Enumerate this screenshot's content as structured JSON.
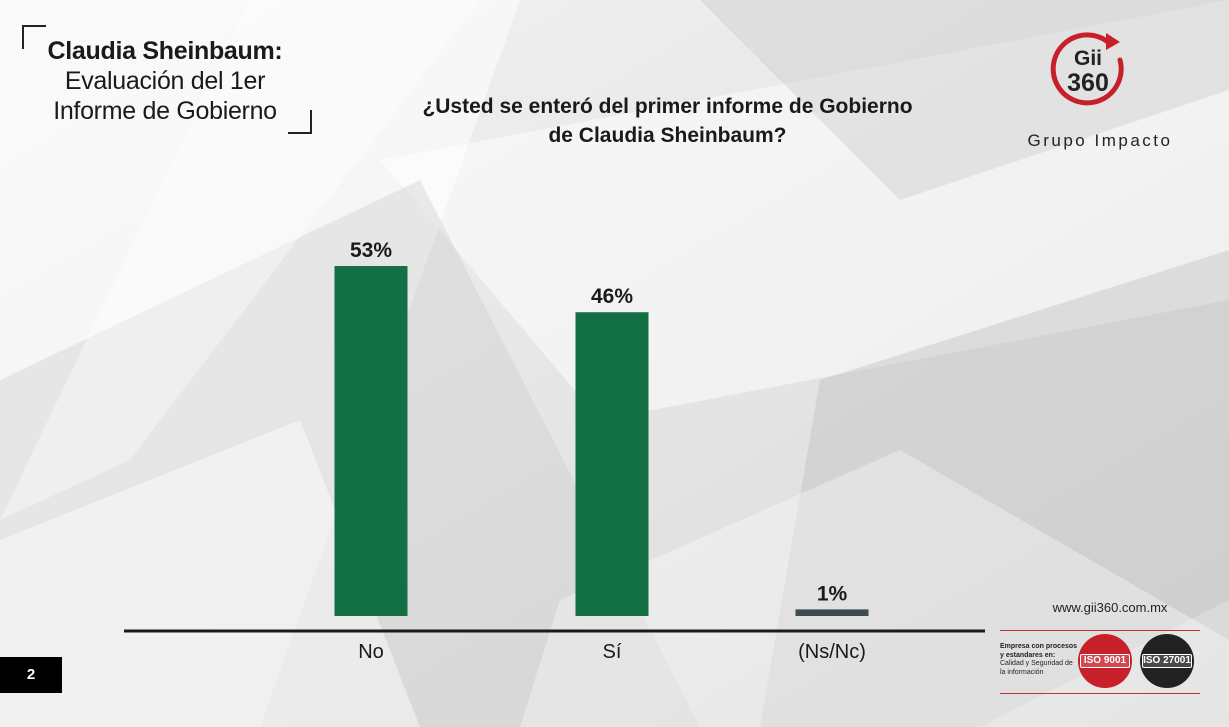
{
  "slide": {
    "title_bold": "Claudia Sheinbaum:",
    "title_line2": "Evaluación del 1er",
    "title_line3": "Informe de Gobierno",
    "page_number": "2"
  },
  "question": {
    "line1": "¿Usted se enteró del primer informe de Gobierno",
    "line2": "de Claudia Sheinbaum?"
  },
  "logo": {
    "mark_top": "Gii",
    "mark_bottom": "360",
    "name": "Grupo Impacto",
    "accent_color": "#c8202a"
  },
  "footer": {
    "website": "www.gii360.com.mx",
    "cert_bold": "Empresa con procesos y estandares en:",
    "cert_text": "Calidad y Seguridad de la información",
    "iso_1": "ISO 9001",
    "iso_2": "ISO 27001"
  },
  "chart_data": {
    "type": "bar",
    "title": "¿Usted se enteró del primer informe de Gobierno de Claudia Sheinbaum?",
    "categories": [
      "No",
      "Sí",
      "(Ns/Nc)"
    ],
    "values": [
      53,
      46,
      1
    ],
    "value_labels": [
      "53%",
      "46%",
      "1%"
    ],
    "colors": [
      "#137044",
      "#137044",
      "#3d4b55"
    ],
    "ylim": [
      0,
      53
    ],
    "grid": false,
    "legend": "none"
  }
}
